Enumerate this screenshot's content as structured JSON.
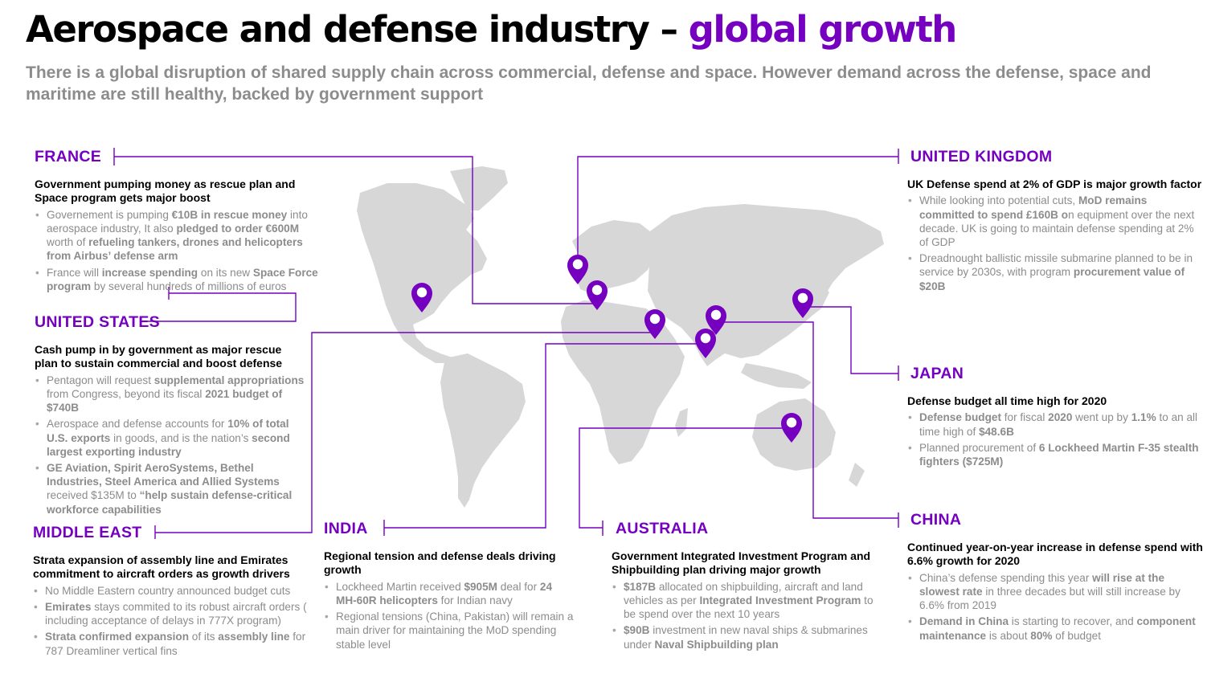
{
  "header": {
    "title_main": "Aerospace and defense industry – ",
    "title_accent": "global  growth",
    "subtitle": "There is a global disruption of shared supply chain across commercial, defense and space. However demand across the defense, space and maritime are still healthy, backed by government support"
  },
  "colors": {
    "accent": "#7500c0",
    "map": "#d7d7d7",
    "muted_text": "#8c8c8c"
  },
  "regions": {
    "france": {
      "name": "FRANCE",
      "headline": "Government pumping money as rescue plan and Space program gets major boost",
      "b1": [
        "Governement is pumping ",
        "€10B in rescue money",
        " into aerospace industry, It also ",
        "pledged to order €600M",
        " worth of ",
        "refueling tankers, drones and helicopters from Airbus’ defense arm"
      ],
      "b2": [
        "France will ",
        "increase spending",
        " on its new ",
        "Space Force program",
        " by several hundreds of millions of euros"
      ]
    },
    "us": {
      "name": "UNITED STATES",
      "headline": "Cash pump in by government as major rescue plan to sustain commercial and boost defense",
      "b1": [
        "Pentagon will request ",
        "supplemental appropriations",
        " from Congress, beyond its fiscal ",
        "2021 budget of $740B"
      ],
      "b2": [
        "Aerospace and defense accounts for ",
        "10% of total U.S. exports",
        " in goods, and is the nation’s ",
        "second largest exporting industry"
      ],
      "b3": [
        "GE Aviation, Spirit AeroSystems, Bethel Industries, Steel America and Allied Systems",
        " received $135M  to ",
        "“help sustain defense-critical workforce capabilities"
      ]
    },
    "middle_east": {
      "name": "MIDDLE EAST",
      "headline": "Strata expansion of assembly line and Emirates commitment to aircraft orders as growth drivers",
      "b1": [
        "No Middle Eastern country announced budget cuts"
      ],
      "b2": [
        "Emirates",
        " stays commited to its robust aircraft orders ( including acceptance of delays in 777X program)"
      ],
      "b3": [
        "Strata confirmed expansion",
        " of its ",
        "assembly line",
        " for 787 Dreamliner vertical fins"
      ]
    },
    "india": {
      "name": "INDIA",
      "headline": "Regional tension and defense deals driving growth",
      "b1": [
        "Lockheed Martin received ",
        "$905M",
        " deal for ",
        "24 MH-60R helicopters",
        " for Indian navy"
      ],
      "b2": [
        "Regional tensions (China, Pakistan) will remain a main driver for maintaining the MoD spending stable level"
      ]
    },
    "australia": {
      "name": "AUSTRALIA",
      "headline": "Government Integrated Investment Program and Shipbuilding plan driving major growth",
      "b1": [
        "$187B",
        " allocated on shipbuilding, aircraft and land vehicles as per ",
        "Integrated Investment Program",
        " to be spend over the next 10 years"
      ],
      "b2": [
        "$90B",
        "  investment in new naval ships & submarines under ",
        "Naval Shipbuilding plan"
      ]
    },
    "uk": {
      "name": "UNITED KINGDOM",
      "headline": "UK Defense spend at 2% of GDP is major growth factor",
      "b1": [
        "While looking into potential cuts, ",
        "MoD remains committed to spend  £160B o",
        "n equipment over the next decade.  UK is going to maintain defense spending at 2% of GDP"
      ],
      "b2": [
        "Dreadnought ballistic missile submarine planned to be in service by 2030s, with program ",
        "procurement value of $20B"
      ]
    },
    "japan": {
      "name": "JAPAN",
      "headline": "Defense budget all time high for 2020",
      "b1": [
        "Defense budget",
        " for fiscal ",
        "2020",
        " went up by ",
        "1.1%",
        " to an all time high of ",
        "$48.6B"
      ],
      "b2": [
        "Planned procurement of  ",
        "6 Lockheed Martin F-35 stealth fighters ($725M)"
      ]
    },
    "china": {
      "name": "CHINA",
      "headline": "Continued year-on-year increase in defense spend with 6.6% growth for 2020",
      "b1": [
        "China’s defense spending this year ",
        "will rise at the slowest rate",
        " in three decades but will still increase by 6.6% from 2019"
      ],
      "b2": [
        "Demand in China",
        " is starting to recover, and ",
        "component maintenance",
        " is about ",
        "80%",
        " of budget"
      ]
    }
  }
}
